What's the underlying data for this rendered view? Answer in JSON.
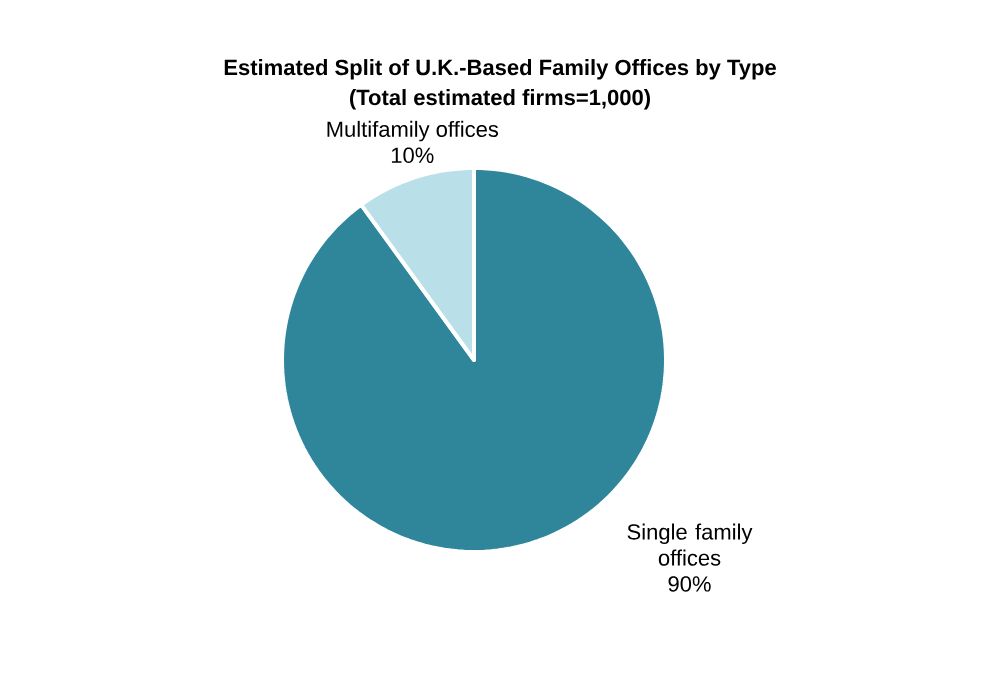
{
  "chart_data": {
    "type": "pie",
    "title": "Estimated Split of U.K.-Based Family Offices by Type",
    "subtitle": "(Total estimated firms=1,000)",
    "categories": [
      "Single family offices",
      "Multifamily offices"
    ],
    "values": [
      90,
      10
    ],
    "value_labels": [
      "90%",
      "10%"
    ],
    "colors": [
      "#2f869b",
      "#b9dfe8"
    ]
  }
}
